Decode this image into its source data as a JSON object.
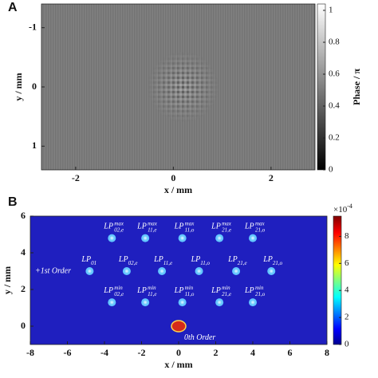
{
  "chart_data": [
    {
      "type": "image",
      "panel": "A",
      "xlabel": "x / mm",
      "ylabel": "y / mm",
      "xlim": [
        -2.7,
        2.9
      ],
      "xticks": [
        -2,
        0,
        2
      ],
      "ylim": [
        -1.4,
        1.4
      ],
      "yticks": [
        -1,
        0,
        1
      ],
      "y_inverted": true,
      "colorbar": {
        "label": "Phase / π",
        "lim": [
          0,
          1.04
        ],
        "ticks": [
          0,
          0.2,
          0.4,
          0.6,
          0.8,
          1
        ],
        "colormap": "gray"
      },
      "color": "#7f7f7f"
    },
    {
      "type": "scatter",
      "panel": "B",
      "xlabel": "x / mm",
      "ylabel": "y / mm",
      "xlim": [
        -8,
        8
      ],
      "xticks": [
        -8,
        -6,
        -4,
        -2,
        0,
        2,
        4,
        6,
        8
      ],
      "ylim": [
        -1,
        6
      ],
      "yticks": [
        0,
        2,
        4,
        6
      ],
      "background": "#1f1fbf",
      "colorbar": {
        "multiplier": "×10",
        "multiplier_exp": "-4",
        "lim": [
          0,
          9.5
        ],
        "ticks": [
          0,
          2,
          4,
          6,
          8
        ],
        "colormap": "jet"
      },
      "annotations": [
        "+1st Order",
        "0th Order"
      ],
      "spot_color": "#63c6ff",
      "zero_order": {
        "x": 0,
        "y": 0,
        "color": "#d42a1a"
      },
      "spots": [
        {
          "x": -3.6,
          "y": 4.8,
          "base": "LP",
          "sub": "02,e",
          "sup": "max"
        },
        {
          "x": -1.8,
          "y": 4.8,
          "base": "LP",
          "sub": "11,e",
          "sup": "max"
        },
        {
          "x": 0.2,
          "y": 4.8,
          "base": "LP",
          "sub": "11,o",
          "sup": "max"
        },
        {
          "x": 2.2,
          "y": 4.8,
          "base": "LP",
          "sub": "21,e",
          "sup": "max"
        },
        {
          "x": 4.0,
          "y": 4.8,
          "base": "LP",
          "sub": "21,o",
          "sup": "max"
        },
        {
          "x": -4.8,
          "y": 3.0,
          "base": "LP",
          "sub": "01"
        },
        {
          "x": -2.8,
          "y": 3.0,
          "base": "LP",
          "sub": "02,e"
        },
        {
          "x": -0.9,
          "y": 3.0,
          "base": "LP",
          "sub": "11,e"
        },
        {
          "x": 1.1,
          "y": 3.0,
          "base": "LP",
          "sub": "11,o"
        },
        {
          "x": 3.1,
          "y": 3.0,
          "base": "LP",
          "sub": "21,e"
        },
        {
          "x": 5.0,
          "y": 3.0,
          "base": "LP",
          "sub": "21,o"
        },
        {
          "x": -3.6,
          "y": 1.3,
          "base": "LP",
          "sub": "02,e",
          "sup": "min"
        },
        {
          "x": -1.8,
          "y": 1.3,
          "base": "LP",
          "sub": "11,e",
          "sup": "min"
        },
        {
          "x": 0.2,
          "y": 1.3,
          "base": "LP",
          "sub": "11,o",
          "sup": "min"
        },
        {
          "x": 2.2,
          "y": 1.3,
          "base": "LP",
          "sub": "21,e",
          "sup": "min"
        },
        {
          "x": 4.0,
          "y": 1.3,
          "base": "LP",
          "sub": "21,o",
          "sup": "min"
        }
      ]
    }
  ]
}
